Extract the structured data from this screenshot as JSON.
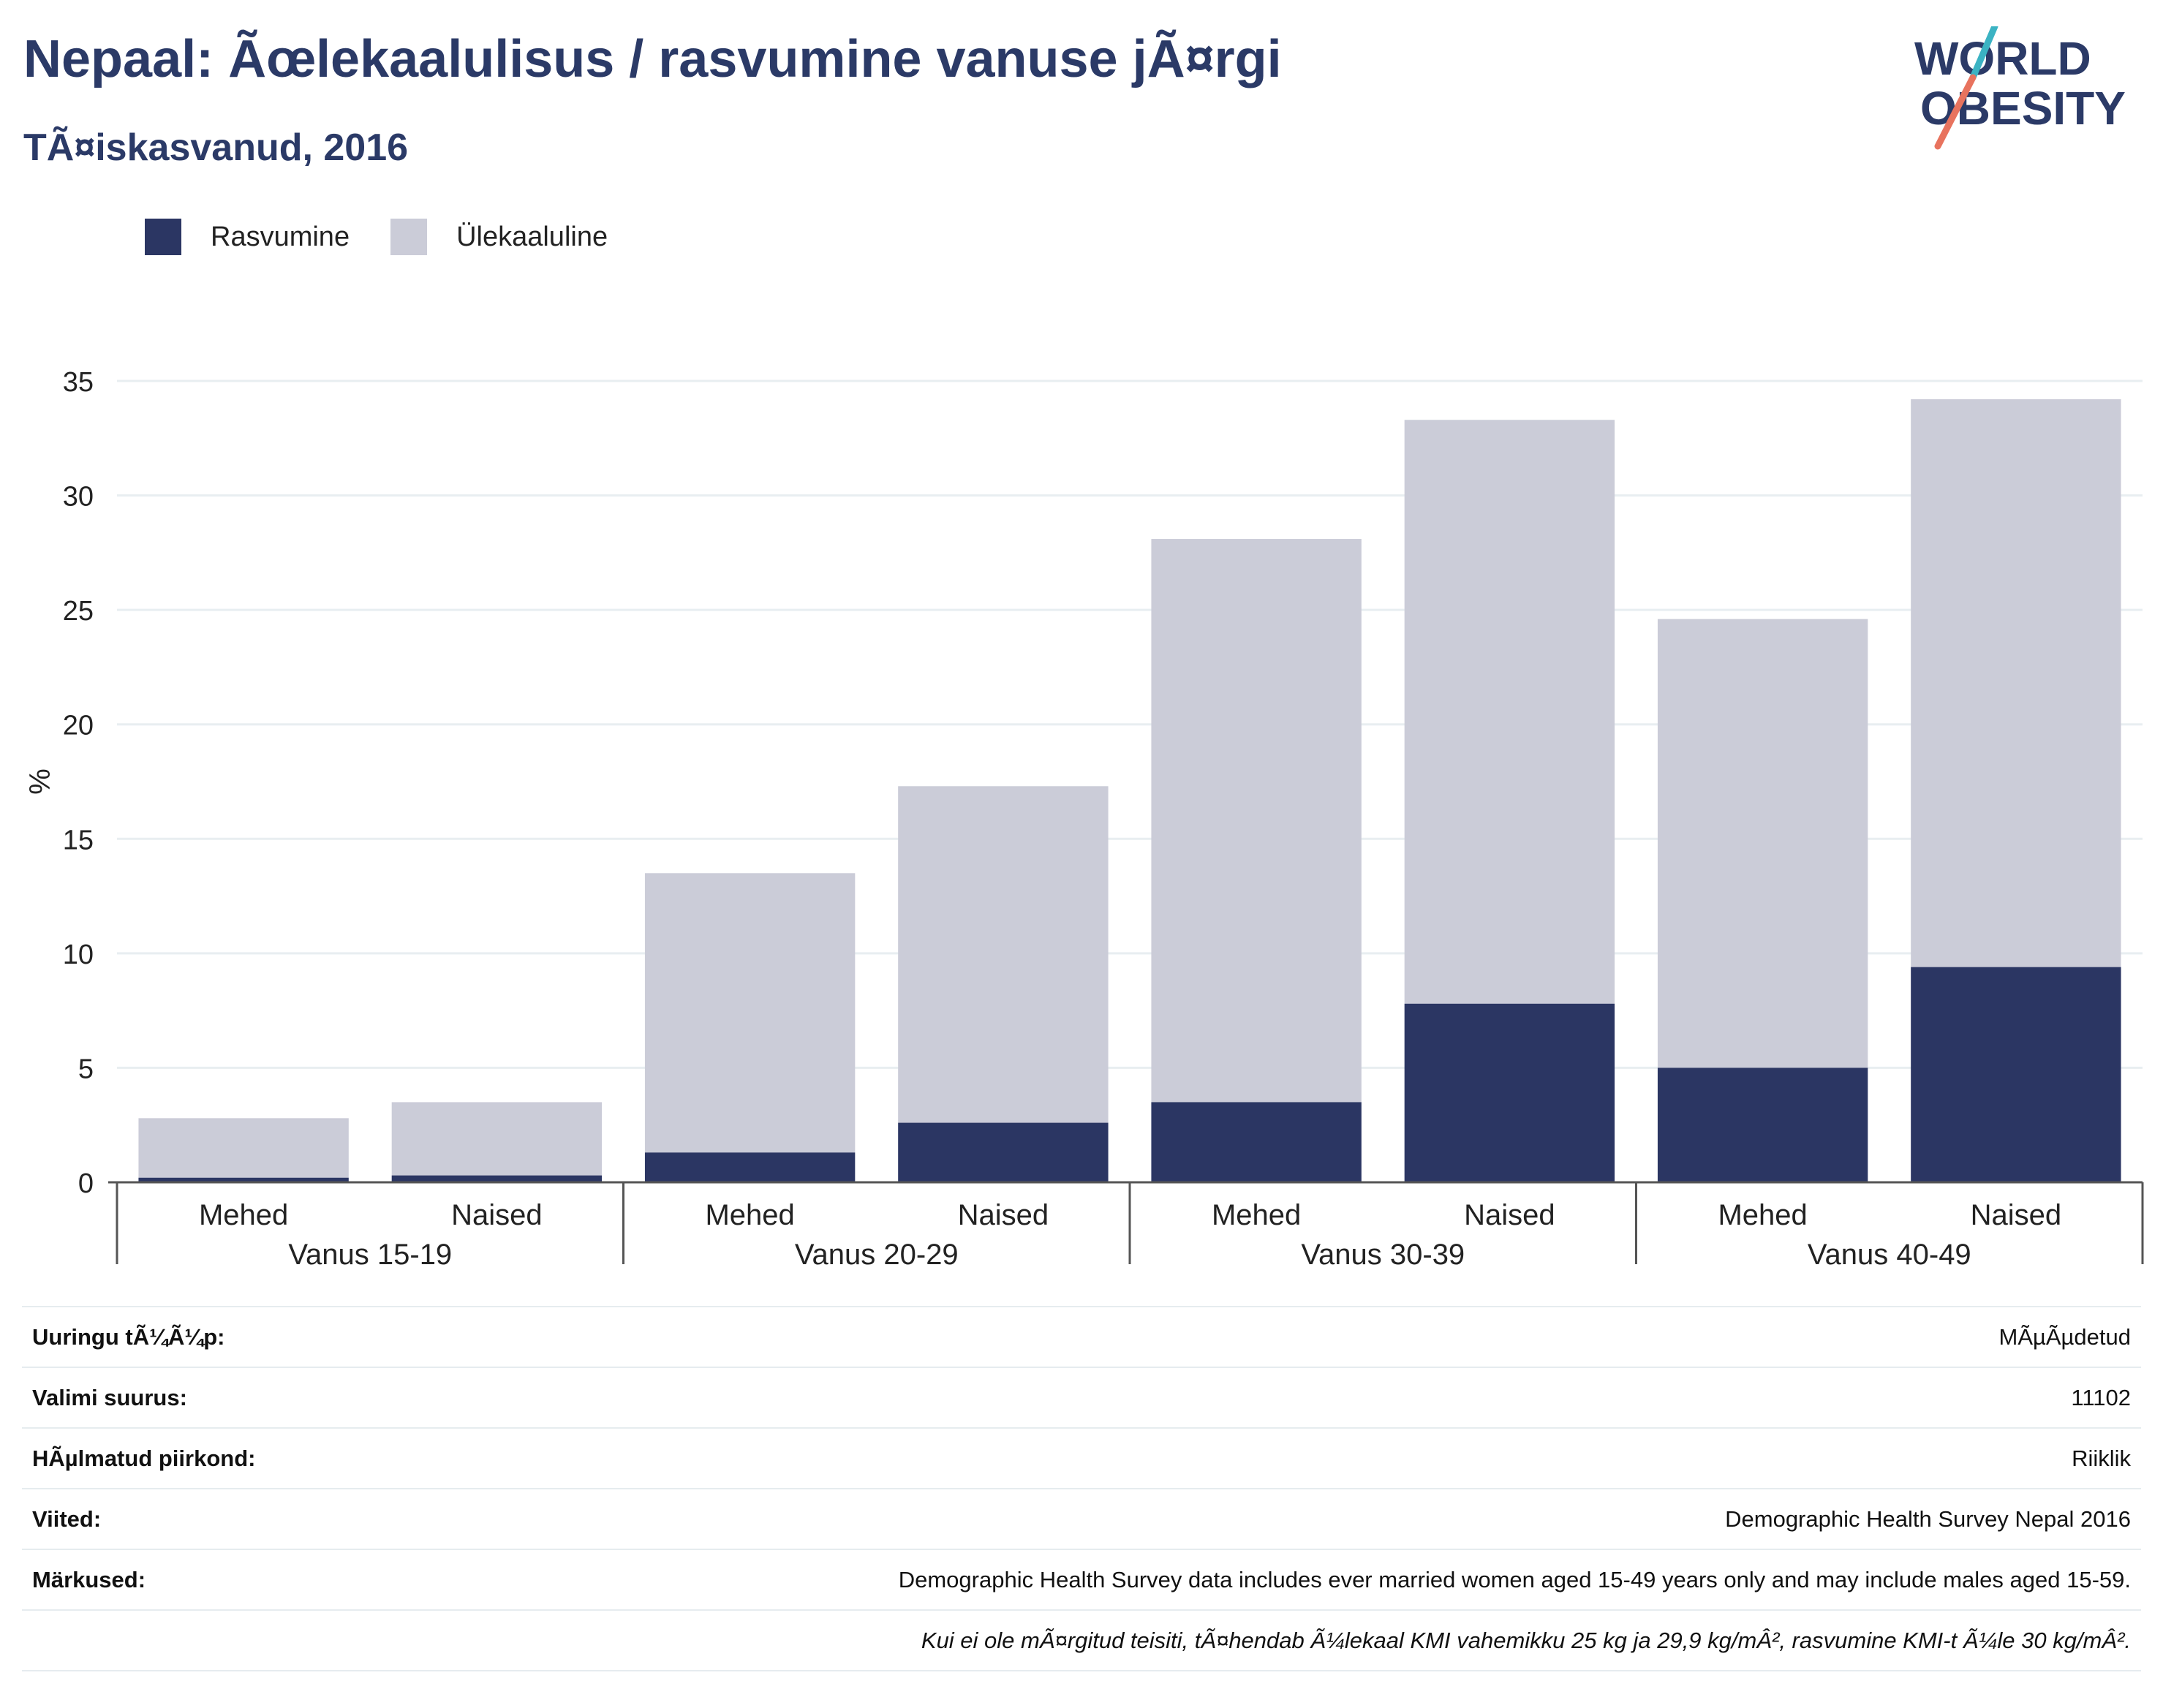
{
  "header": {
    "title": "Nepaal: Ãœlekaalulisus / rasvumine vanuse jÃ¤rgi",
    "subtitle": "TÃ¤iskasvanud, 2016",
    "logo_line1": "WORLD",
    "logo_line2": "OBESITY"
  },
  "colors": {
    "obesity": "#2b3663",
    "overweight": "#cbccd8",
    "title": "#2b3a67",
    "grid": "#e8eef1",
    "axis": "#555555",
    "logo_teal": "#3bb3c3",
    "logo_coral": "#e8735e"
  },
  "chart_data": {
    "type": "bar",
    "stacked": true,
    "ylabel": "%",
    "ylim": [
      0,
      35
    ],
    "yticks": [
      0,
      5,
      10,
      15,
      20,
      25,
      30,
      35
    ],
    "grid": true,
    "legend_position": "top-left",
    "groups": [
      "Vanus 15-19",
      "Vanus 20-29",
      "Vanus 30-39",
      "Vanus 40-49"
    ],
    "categories": [
      "Mehed",
      "Naised",
      "Mehed",
      "Naised",
      "Mehed",
      "Naised",
      "Mehed",
      "Naised"
    ],
    "series": [
      {
        "name": "Rasvumine",
        "values": [
          0.2,
          0.3,
          1.3,
          2.6,
          3.5,
          7.8,
          5.0,
          9.4
        ]
      },
      {
        "name": "Ülekaaluline",
        "values": [
          2.6,
          3.2,
          12.2,
          14.7,
          24.6,
          25.5,
          19.6,
          24.8
        ]
      }
    ]
  },
  "info": {
    "rows": [
      {
        "key": "Uuringu tÃ¼Ã¼p:",
        "value": "MÃµÃµdetud"
      },
      {
        "key": "Valimi suurus:",
        "value": "11102"
      },
      {
        "key": "HÃµlmatud piirkond:",
        "value": "Riiklik"
      },
      {
        "key": "Viited:",
        "value": "Demographic Health Survey Nepal 2016"
      },
      {
        "key": "Märkused:",
        "value": "Demographic Health Survey data includes ever married women aged 15-49 years only and may include males aged 15-59."
      }
    ],
    "footnote": "Kui ei ole mÃ¤rgitud teisiti, tÃ¤hendab Ã¼lekaal KMI vahemikku 25 kg ja 29,9 kg/mÂ², rasvumine KMI-t Ã¼le 30 kg/mÂ²."
  }
}
